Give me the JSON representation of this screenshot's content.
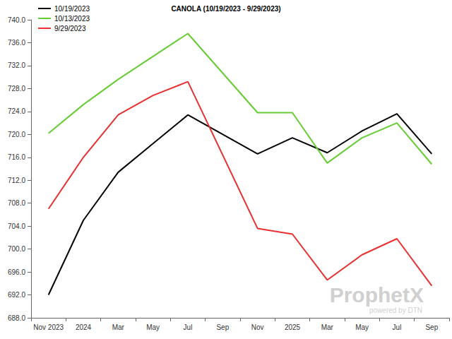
{
  "chart_data": {
    "type": "line",
    "title": "CANOLA (10/19/2023 - 9/29/2023)",
    "categories": [
      "Nov 2023",
      "2024",
      "Mar",
      "May",
      "Jul",
      "Sep",
      "Nov",
      "2025",
      "Mar",
      "May",
      "Jul",
      "Sep"
    ],
    "series": [
      {
        "name": "10/19/2023",
        "color": "#000000",
        "values": [
          692.0,
          705.0,
          713.4,
          718.4,
          723.4,
          null,
          716.6,
          719.4,
          716.8,
          720.6,
          723.6,
          716.6
        ]
      },
      {
        "name": "10/13/2023",
        "color": "#66cc33",
        "values": [
          720.2,
          725.2,
          729.6,
          733.6,
          737.6,
          null,
          723.8,
          723.8,
          715.0,
          719.4,
          722.0,
          714.8
        ]
      },
      {
        "name": "9/29/2023",
        "color": "#e83030",
        "values": [
          707.0,
          716.0,
          723.4,
          726.8,
          729.2,
          null,
          703.6,
          702.6,
          694.6,
          699.0,
          701.8,
          693.6
        ]
      }
    ],
    "ylim": [
      688,
      740
    ],
    "yticks": [
      {
        "value": 688,
        "label": "688.0"
      },
      {
        "value": 692,
        "label": "692.0"
      },
      {
        "value": 696,
        "label": "696.0"
      },
      {
        "value": 700,
        "label": "700.0"
      },
      {
        "value": 704,
        "label": "704.0"
      },
      {
        "value": 708,
        "label": "708.0"
      },
      {
        "value": 712,
        "label": "712.0"
      },
      {
        "value": 716,
        "label": "716.0"
      },
      {
        "value": 720,
        "label": "720.0"
      },
      {
        "value": 724,
        "label": "724.0"
      },
      {
        "value": 728,
        "label": "728.0"
      },
      {
        "value": 732,
        "label": "732.0"
      },
      {
        "value": 736,
        "label": "736.0"
      },
      {
        "value": 740,
        "label": "740.0"
      }
    ],
    "grid": false,
    "legend": "upper left",
    "annotations": [
      "ProphetX",
      "powered by DTN"
    ]
  }
}
